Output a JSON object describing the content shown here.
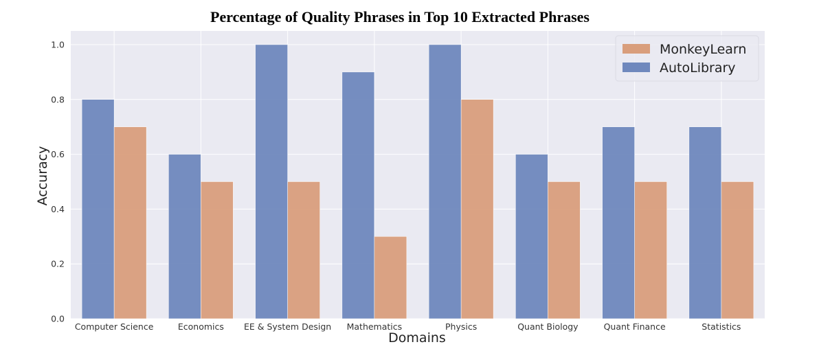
{
  "chart_data": {
    "type": "bar",
    "title": "Percentage of Quality Phrases in Top 10 Extracted Phrases",
    "xlabel": "Domains",
    "ylabel": "Accuracy",
    "categories": [
      "Computer Science",
      "Economics",
      "EE & System Design",
      "Mathematics",
      "Physics",
      "Quant Biology",
      "Quant Finance",
      "Statistics"
    ],
    "series": [
      {
        "name": "AutoLibrary",
        "color": "#6f88bd",
        "values": [
          0.8,
          0.6,
          1.0,
          0.9,
          1.0,
          0.6,
          0.7,
          0.7
        ]
      },
      {
        "name": "MonkeyLearn",
        "color": "#d99e7c",
        "values": [
          0.7,
          0.5,
          0.5,
          0.3,
          0.8,
          0.5,
          0.5,
          0.5
        ]
      }
    ],
    "ylim": [
      0,
      1.05
    ],
    "yticks": [
      "0.0",
      "0.2",
      "0.4",
      "0.6",
      "0.8",
      "1.0"
    ],
    "grid": true,
    "plot_background": "#eaeaf2",
    "grid_color": "#ffffff",
    "legend": {
      "position": "top-right",
      "entries": [
        "MonkeyLearn",
        "AutoLibrary"
      ]
    }
  }
}
